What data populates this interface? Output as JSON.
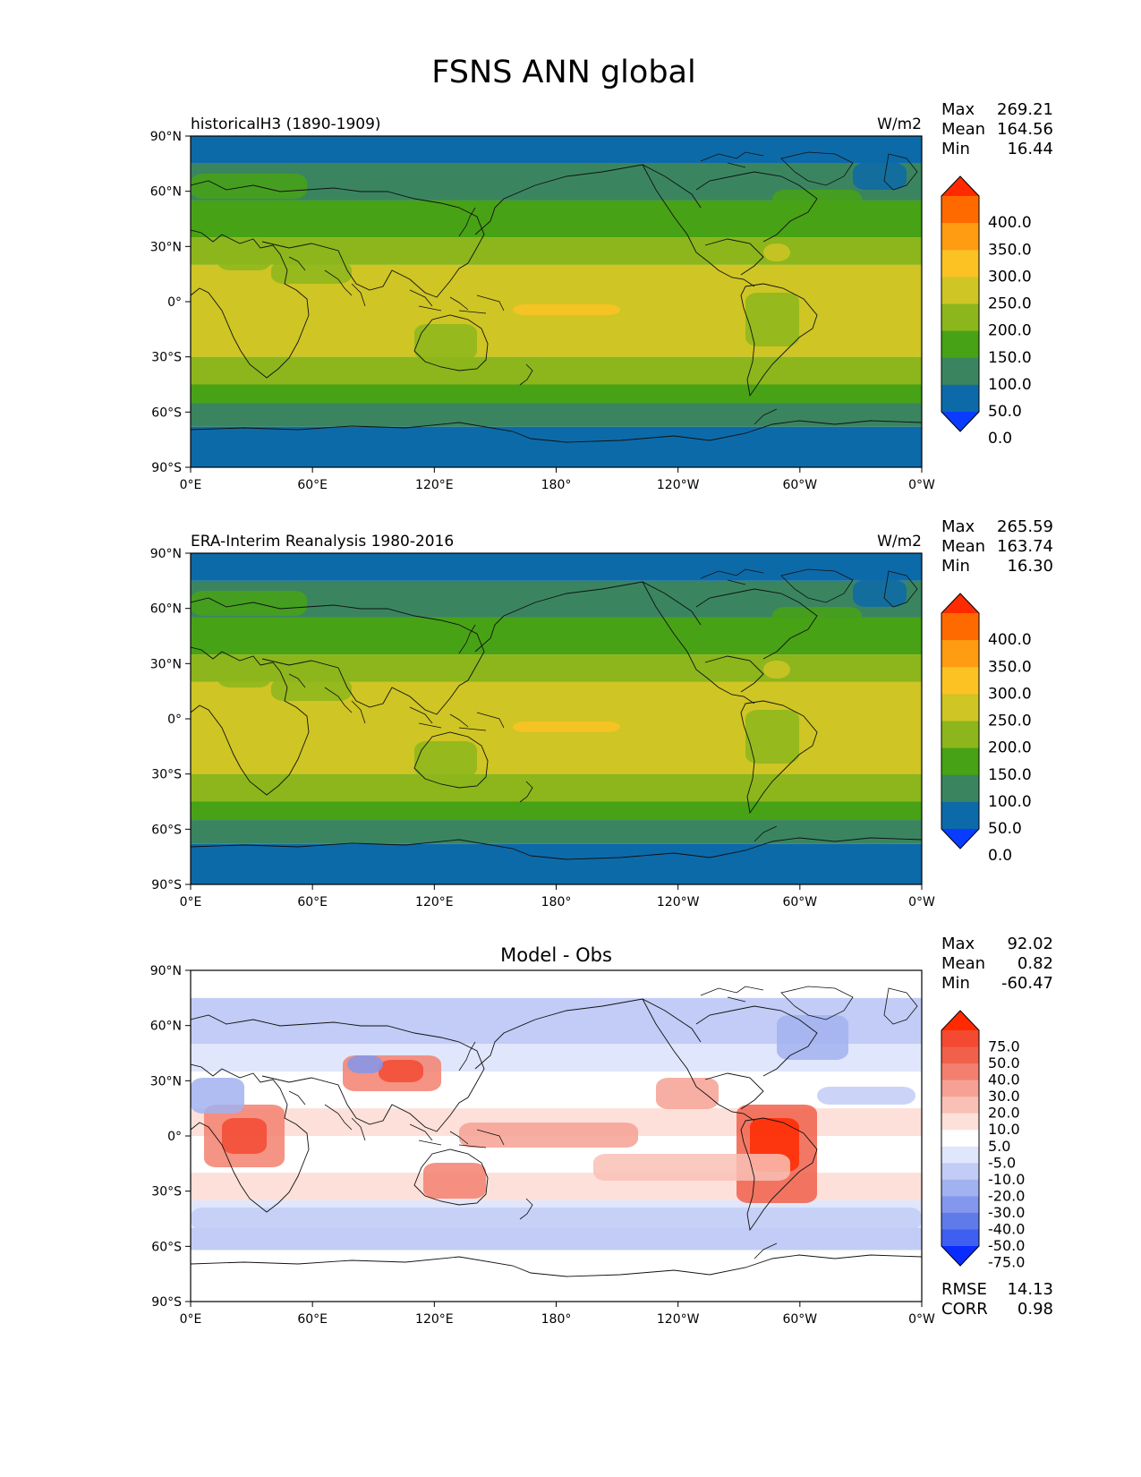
{
  "figure": {
    "title": "FSNS ANN global"
  },
  "axes": {
    "lat_ticks": [
      "90°N",
      "60°N",
      "30°N",
      "0°",
      "30°S",
      "60°S",
      "90°S"
    ],
    "lon_ticks": [
      "0°E",
      "60°E",
      "120°E",
      "180°",
      "120°W",
      "60°W",
      "0°W"
    ]
  },
  "panels": [
    {
      "left_title": "historicalH3 (1890-1909)",
      "center_title": "",
      "units": "W/m2",
      "stats": {
        "max_label": "Max",
        "max": "269.21",
        "mean_label": "Mean",
        "mean": "164.56",
        "min_label": "Min",
        "min": "16.44"
      },
      "colorbar": "abs",
      "map": "abs"
    },
    {
      "left_title": "ERA-Interim Reanalysis 1980-2016",
      "center_title": "",
      "units": "W/m2",
      "stats": {
        "max_label": "Max",
        "max": "265.59",
        "mean_label": "Mean",
        "mean": "163.74",
        "min_label": "Min",
        "min": "16.30"
      },
      "colorbar": "abs",
      "map": "abs"
    },
    {
      "left_title": "",
      "center_title": "Model - Obs",
      "units": "",
      "stats": {
        "max_label": "Max",
        "max": "92.02",
        "mean_label": "Mean",
        "mean": "0.82",
        "min_label": "Min",
        "min": "-60.47"
      },
      "colorbar": "diff",
      "map": "diff",
      "metrics": {
        "rmse_label": "RMSE",
        "rmse": "14.13",
        "corr_label": "CORR",
        "corr": "0.98"
      }
    }
  ],
  "colorbars": {
    "abs": {
      "levels": [
        "400.0",
        "350.0",
        "300.0",
        "250.0",
        "200.0",
        "150.0",
        "100.0",
        "50.0",
        "0.0"
      ],
      "colors_top_to_bottom": [
        "#ff2a00",
        "#ff6a00",
        "#ff9c12",
        "#fcc224",
        "#cfc524",
        "#8cb61c",
        "#48a215",
        "#3a8560",
        "#0d6aa8",
        "#0a3cff"
      ]
    },
    "diff": {
      "levels": [
        "75.0",
        "50.0",
        "40.0",
        "30.0",
        "20.0",
        "10.0",
        "5.0",
        "-5.0",
        "-10.0",
        "-20.0",
        "-30.0",
        "-40.0",
        "-50.0",
        "-75.0"
      ],
      "colors_top_to_bottom": [
        "#ff2a00",
        "#f34a31",
        "#f0604a",
        "#f3806f",
        "#f6a193",
        "#f9c0b5",
        "#fde0d9",
        "#ffffff",
        "#e0e6fb",
        "#c2ccf6",
        "#a2b2f0",
        "#8398ec",
        "#5f7be9",
        "#3f5ff0",
        "#0a2cff"
      ]
    }
  },
  "chart_data": {
    "type": "heatmap",
    "title": "FSNS ANN global",
    "units": "W/m2",
    "x_axis": "longitude",
    "x_ticks": [
      "0°E",
      "60°E",
      "120°E",
      "180°",
      "120°W",
      "60°W",
      "0°W"
    ],
    "y_axis": "latitude",
    "y_ticks": [
      "90°N",
      "60°N",
      "30°N",
      "0°",
      "30°S",
      "60°S",
      "90°S"
    ],
    "panels": [
      {
        "name": "historicalH3 (1890-1909)",
        "max": 269.21,
        "mean": 164.56,
        "min": 16.44,
        "approx_zonal_bands": [
          {
            "lat_range": [
              75,
              90
            ],
            "value_range": [
              0,
              50
            ]
          },
          {
            "lat_range": [
              55,
              75
            ],
            "value_range": [
              50,
              100
            ]
          },
          {
            "lat_range": [
              35,
              55
            ],
            "value_range": [
              100,
              150
            ]
          },
          {
            "lat_range": [
              -30,
              35
            ],
            "value_range": [
              150,
              250
            ]
          },
          {
            "lat_range": [
              -45,
              -30
            ],
            "value_range": [
              150,
              200
            ]
          },
          {
            "lat_range": [
              -55,
              -45
            ],
            "value_range": [
              100,
              150
            ]
          },
          {
            "lat_range": [
              -68,
              -55
            ],
            "value_range": [
              50,
              100
            ]
          },
          {
            "lat_range": [
              -90,
              -68
            ],
            "value_range": [
              0,
              50
            ]
          }
        ]
      },
      {
        "name": "ERA-Interim Reanalysis 1980-2016",
        "max": 265.59,
        "mean": 163.74,
        "min": 16.3
      },
      {
        "name": "Model - Obs",
        "max": 92.02,
        "mean": 0.82,
        "min": -60.47,
        "rmse": 14.13,
        "corr": 0.98
      }
    ],
    "abs_levels": [
      0,
      50,
      100,
      150,
      200,
      250,
      300,
      350,
      400
    ],
    "diff_levels": [
      -75,
      -50,
      -40,
      -30,
      -20,
      -10,
      -5,
      5,
      10,
      20,
      30,
      40,
      50,
      75
    ],
    "grid": false,
    "legend": "colorbar right of each panel"
  }
}
